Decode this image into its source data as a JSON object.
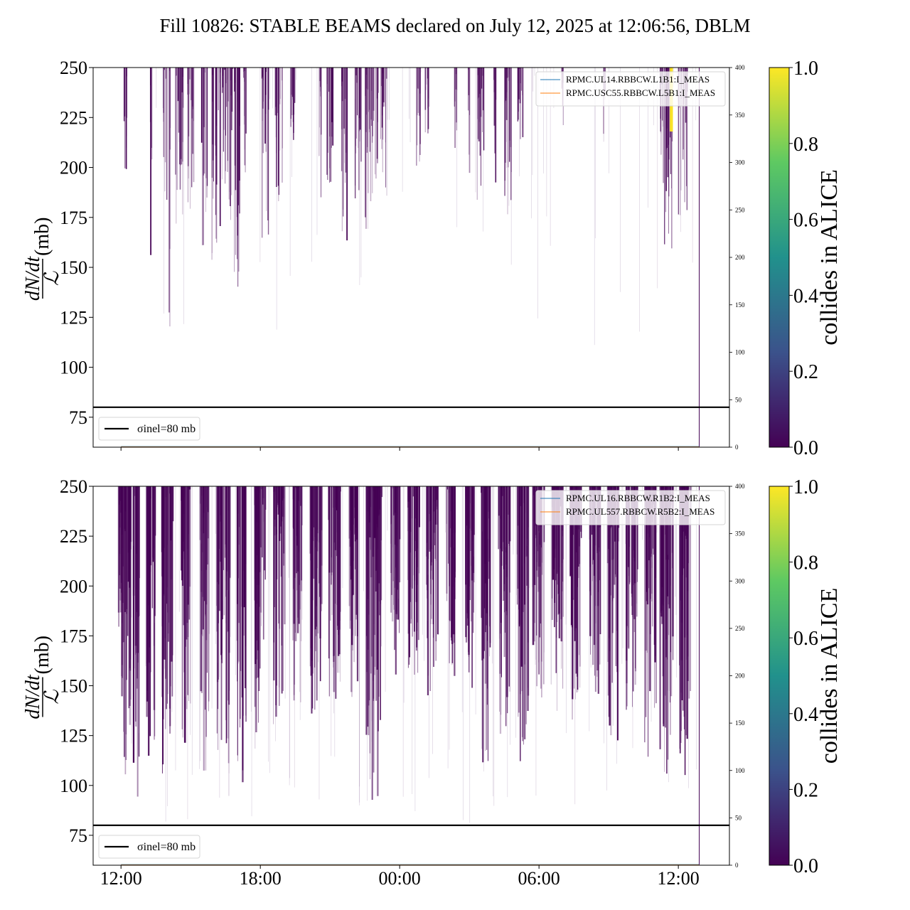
{
  "title": "Fill 10826: STABLE BEAMS declared on July 12, 2025 at 12:06:56, DBLM",
  "colorbar": {
    "label": "collides in ALICE",
    "ticks": [
      "0.0",
      "0.2",
      "0.4",
      "0.6",
      "0.8",
      "1.0"
    ],
    "colormap": [
      "#440154",
      "#3b528b",
      "#21918c",
      "#5ec962",
      "#fde725"
    ]
  },
  "x_ticks": [
    "12:00",
    "18:00",
    "00:00",
    "06:00",
    "12:00"
  ],
  "y_label": {
    "numerator": "dN/dt",
    "denominator": "ℒ",
    "unit": " (mb)"
  },
  "chart_data": [
    {
      "type": "line",
      "ylabel": "dN/dt / L (mb)",
      "ylim": [
        60,
        250
      ],
      "yticks": [
        "75",
        "100",
        "125",
        "150",
        "175",
        "200",
        "225",
        "250"
      ],
      "y2lim": [
        0,
        400
      ],
      "y2ticks": [
        "0",
        "50",
        "100",
        "150",
        "200",
        "250",
        "300",
        "350",
        "400"
      ],
      "x_range_hours": [
        10.8,
        38.2
      ],
      "x_tick_hours": [
        12,
        18,
        24,
        30,
        36
      ],
      "grid": false,
      "legend_top_right": [
        "RPMC.UL14.RBBCW.L1B1:I_MEAS",
        "RPMC.USC55.RBBCW.L5B1:I_MEAS"
      ],
      "legend_top_right_colors": [
        "#1f77b4",
        "#ff7f0e"
      ],
      "legend_bottom_left": "σinel=80 mb",
      "reference_line": 80,
      "reference_label_parts": {
        "sigma": "σ",
        "sub": "inel",
        "rest": "=80 mb"
      },
      "bursts": [
        {
          "t": 12.2,
          "d": 0.15,
          "min": 190
        },
        {
          "t": 13.3,
          "d": 0.1,
          "min": 140
        },
        {
          "t": 13.9,
          "d": 0.15,
          "min": 170
        },
        {
          "t": 14.1,
          "d": 0.1,
          "min": 108
        },
        {
          "t": 14.5,
          "d": 0.35,
          "min": 150
        },
        {
          "t": 15.0,
          "d": 0.3,
          "min": 140
        },
        {
          "t": 15.6,
          "d": 0.25,
          "min": 160
        },
        {
          "t": 16.1,
          "d": 0.4,
          "min": 150
        },
        {
          "t": 16.5,
          "d": 0.3,
          "min": 170
        },
        {
          "t": 16.9,
          "d": 0.5,
          "min": 122
        },
        {
          "t": 17.3,
          "d": 0.2,
          "min": 180
        },
        {
          "t": 18.2,
          "d": 0.3,
          "min": 140
        },
        {
          "t": 18.8,
          "d": 0.3,
          "min": 160
        },
        {
          "t": 19.4,
          "d": 0.2,
          "min": 200
        },
        {
          "t": 20.6,
          "d": 0.15,
          "min": 175
        },
        {
          "t": 21.0,
          "d": 0.3,
          "min": 175
        },
        {
          "t": 21.6,
          "d": 0.3,
          "min": 160
        },
        {
          "t": 22.2,
          "d": 0.3,
          "min": 180
        },
        {
          "t": 22.8,
          "d": 0.6,
          "min": 160
        },
        {
          "t": 23.3,
          "d": 0.3,
          "min": 170
        },
        {
          "t": 24.8,
          "d": 0.2,
          "min": 200
        },
        {
          "t": 25.2,
          "d": 0.2,
          "min": 215
        },
        {
          "t": 26.4,
          "d": 0.15,
          "min": 190
        },
        {
          "t": 27.0,
          "d": 0.1,
          "min": 185
        },
        {
          "t": 27.5,
          "d": 0.35,
          "min": 160
        },
        {
          "t": 28.1,
          "d": 0.1,
          "min": 190
        },
        {
          "t": 28.7,
          "d": 0.4,
          "min": 175
        },
        {
          "t": 29.2,
          "d": 0.25,
          "min": 210
        },
        {
          "t": 31.0,
          "d": 0.1,
          "min": 220
        },
        {
          "t": 32.8,
          "d": 0.1,
          "min": 205
        },
        {
          "t": 35.3,
          "d": 0.2,
          "min": 185
        },
        {
          "t": 35.6,
          "d": 0.4,
          "min": 150
        },
        {
          "t": 36.2,
          "d": 0.4,
          "min": 160
        }
      ],
      "highlight": [
        {
          "t": 35.7,
          "d": 0.1,
          "min": 218,
          "value": 1.0
        }
      ],
      "end_marker_hour": 36.9
    },
    {
      "type": "line",
      "ylabel": "dN/dt / L (mb)",
      "ylim": [
        60,
        250
      ],
      "yticks": [
        "75",
        "100",
        "125",
        "150",
        "175",
        "200",
        "225",
        "250"
      ],
      "y2lim": [
        0,
        400
      ],
      "y2ticks": [
        "0",
        "50",
        "100",
        "150",
        "200",
        "250",
        "300",
        "350",
        "400"
      ],
      "x_range_hours": [
        10.8,
        38.2
      ],
      "x_tick_hours": [
        12,
        18,
        24,
        30,
        36
      ],
      "grid": false,
      "legend_top_right": [
        "RPMC.UL16.RBBCW.R1B2:I_MEAS",
        "RPMC.UL557.RBBCW.R5B2:I_MEAS"
      ],
      "legend_top_right_colors": [
        "#1f77b4",
        "#ff7f0e"
      ],
      "legend_bottom_left": "σinel=80 mb",
      "reference_line": 80,
      "reference_label_parts": {
        "sigma": "σ",
        "sub": "inel",
        "rest": "=80 mb"
      },
      "bursts": [
        {
          "t": 12.0,
          "d": 0.2,
          "min": 150
        },
        {
          "t": 12.4,
          "d": 0.8,
          "min": 92
        },
        {
          "t": 13.3,
          "d": 0.4,
          "min": 110
        },
        {
          "t": 14.0,
          "d": 0.5,
          "min": 100
        },
        {
          "t": 14.8,
          "d": 0.4,
          "min": 105
        },
        {
          "t": 15.6,
          "d": 0.4,
          "min": 102
        },
        {
          "t": 16.4,
          "d": 0.6,
          "min": 92
        },
        {
          "t": 17.2,
          "d": 0.4,
          "min": 100
        },
        {
          "t": 18.0,
          "d": 0.5,
          "min": 110
        },
        {
          "t": 18.8,
          "d": 0.5,
          "min": 120
        },
        {
          "t": 19.6,
          "d": 0.4,
          "min": 130
        },
        {
          "t": 20.4,
          "d": 0.5,
          "min": 125
        },
        {
          "t": 21.2,
          "d": 0.5,
          "min": 140
        },
        {
          "t": 22.0,
          "d": 0.4,
          "min": 130
        },
        {
          "t": 22.9,
          "d": 0.7,
          "min": 90
        },
        {
          "t": 23.8,
          "d": 0.4,
          "min": 140
        },
        {
          "t": 24.6,
          "d": 0.5,
          "min": 150
        },
        {
          "t": 25.4,
          "d": 0.5,
          "min": 140
        },
        {
          "t": 26.2,
          "d": 0.4,
          "min": 150
        },
        {
          "t": 27.0,
          "d": 0.4,
          "min": 140
        },
        {
          "t": 27.7,
          "d": 0.4,
          "min": 110
        },
        {
          "t": 28.5,
          "d": 0.5,
          "min": 120
        },
        {
          "t": 29.3,
          "d": 0.5,
          "min": 100
        },
        {
          "t": 30.0,
          "d": 0.5,
          "min": 140
        },
        {
          "t": 30.8,
          "d": 0.5,
          "min": 135
        },
        {
          "t": 31.6,
          "d": 0.5,
          "min": 125
        },
        {
          "t": 32.4,
          "d": 0.5,
          "min": 130
        },
        {
          "t": 33.2,
          "d": 0.5,
          "min": 120
        },
        {
          "t": 34.0,
          "d": 0.5,
          "min": 125
        },
        {
          "t": 34.8,
          "d": 0.5,
          "min": 110
        },
        {
          "t": 35.5,
          "d": 0.6,
          "min": 92
        },
        {
          "t": 36.3,
          "d": 0.5,
          "min": 95
        }
      ],
      "highlight": [],
      "end_marker_hour": 36.9
    }
  ]
}
